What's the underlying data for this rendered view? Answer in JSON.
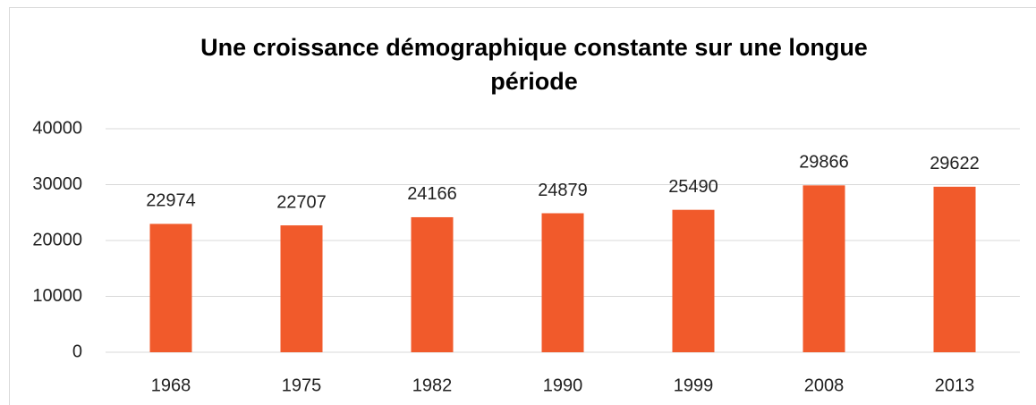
{
  "chart_data": {
    "type": "bar",
    "title": "Une croissance démographique constante sur une longue période",
    "categories": [
      "1968",
      "1975",
      "1982",
      "1990",
      "1999",
      "2008",
      "2013"
    ],
    "values": [
      22974,
      22707,
      24166,
      24879,
      25490,
      29866,
      29622
    ],
    "color": "#f15a2b",
    "ylim": [
      0,
      40000
    ],
    "yticks": [
      0,
      10000,
      20000,
      30000,
      40000
    ],
    "grid": true
  }
}
